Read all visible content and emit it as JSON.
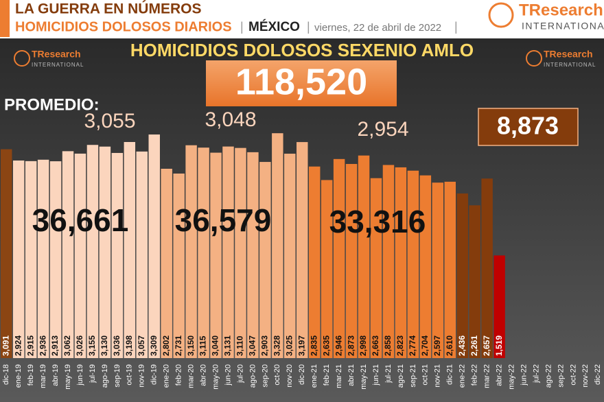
{
  "header": {
    "title": "LA GUERRA EN NÚMEROS",
    "subtitle": "HOMICIDIOS DOLOSOS DIARIOS",
    "country": "MÉXICO",
    "date": "viernes, 22 de abril de 2022",
    "logo_name": "TResearch",
    "logo_sub": "INTERNATIONAL"
  },
  "chart_data": {
    "type": "bar",
    "title": "HOMICIDIOS DOLOSOS SEXENIO AMLO",
    "total": 118520,
    "total_label": "118,520",
    "average_caption": "PROMEDIO:",
    "periods": [
      {
        "average": 3055,
        "average_label": "3,055",
        "total": 36661,
        "total_label": "36,661"
      },
      {
        "average": 3048,
        "average_label": "3,048",
        "total": 36579,
        "total_label": "36,579"
      },
      {
        "average": 2954,
        "average_label": "2,954",
        "total": 33316,
        "total_label": "33,316"
      }
    ],
    "current_total": 8873,
    "current_total_label": "8,873",
    "categories": [
      "dic-18",
      "ene-19",
      "feb-19",
      "mar-19",
      "abr-19",
      "may-19",
      "jun-19",
      "jul-19",
      "ago-19",
      "sep-19",
      "oct-19",
      "nov-19",
      "dic-19",
      "ene-20",
      "feb-20",
      "mar-20",
      "abr-20",
      "may-20",
      "jun-20",
      "jul-20",
      "ago-20",
      "sep-20",
      "oct-20",
      "nov-20",
      "dic-20",
      "ene-21",
      "feb-21",
      "mar-21",
      "abr-21",
      "may-21",
      "jun-21",
      "jul-21",
      "ago-21",
      "sep-21",
      "oct-21",
      "nov-21",
      "dic-21",
      "ene-22",
      "feb-22",
      "mar-22",
      "abr-22",
      "may-22",
      "jun-22",
      "jul-22",
      "ago-22",
      "sep-22",
      "oct-22",
      "nov-22",
      "dic-22"
    ],
    "values": [
      3091,
      2924,
      2915,
      2936,
      2913,
      3062,
      3026,
      3155,
      3130,
      3036,
      3198,
      3057,
      3309,
      2802,
      2731,
      3150,
      3115,
      3040,
      3131,
      3110,
      3047,
      2903,
      3328,
      3025,
      3197,
      2835,
      2635,
      2946,
      2873,
      2998,
      2663,
      2858,
      2823,
      2774,
      2704,
      2597,
      2610,
      2436,
      2261,
      2657,
      1519,
      null,
      null,
      null,
      null,
      null,
      null,
      null,
      null
    ],
    "value_labels": [
      "3,091",
      "2,924",
      "2,915",
      "2,936",
      "2,913",
      "3,062",
      "3,026",
      "3,155",
      "3,130",
      "3,036",
      "3,198",
      "3,057",
      "3,309",
      "2,802",
      "2,731",
      "3,150",
      "3,115",
      "3,040",
      "3,131",
      "3,110",
      "3,047",
      "2,903",
      "3,328",
      "3,025",
      "3,197",
      "2,835",
      "2,635",
      "2,946",
      "2,873",
      "2,998",
      "2,663",
      "2,858",
      "2,823",
      "2,774",
      "2,704",
      "2,597",
      "2,610",
      "2,436",
      "2,261",
      "2,657",
      "1,519",
      null,
      null,
      null,
      null,
      null,
      null,
      null,
      null
    ],
    "colors": [
      "#8b4513",
      "#fbd5bd",
      "#fbd5bd",
      "#fbd5bd",
      "#fbd5bd",
      "#fbd5bd",
      "#fbd5bd",
      "#fbd5bd",
      "#fbd5bd",
      "#fbd5bd",
      "#fbd5bd",
      "#fbd5bd",
      "#fbd5bd",
      "#f4b183",
      "#f4b183",
      "#f4b183",
      "#f4b183",
      "#f4b183",
      "#f4b183",
      "#f4b183",
      "#f4b183",
      "#f4b183",
      "#f4b183",
      "#f4b183",
      "#f4b183",
      "#ed7d31",
      "#ed7d31",
      "#ed7d31",
      "#ed7d31",
      "#ed7d31",
      "#ed7d31",
      "#ed7d31",
      "#ed7d31",
      "#ed7d31",
      "#ed7d31",
      "#ed7d31",
      "#ed7d31",
      "#843c0c",
      "#843c0c",
      "#843c0c",
      "#c00000",
      null,
      null,
      null,
      null,
      null,
      null,
      null,
      null
    ]
  }
}
